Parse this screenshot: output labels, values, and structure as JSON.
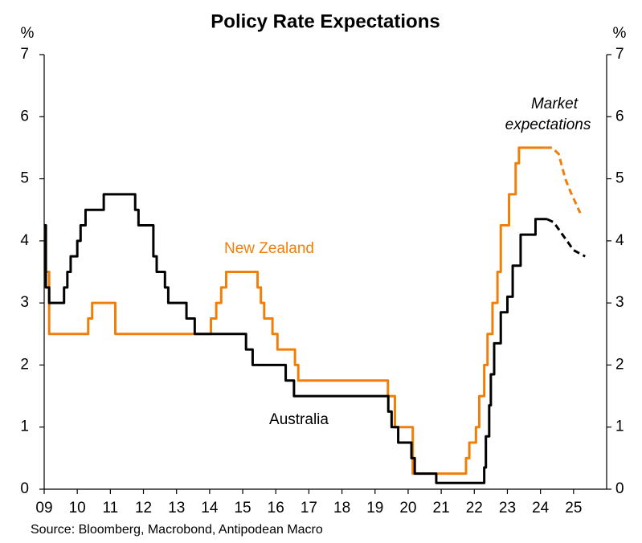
{
  "chart_data": {
    "type": "line",
    "title": "Policy Rate Expectations",
    "y_label": "%",
    "y2_label": "%",
    "source": "Source: Bloomberg, Macrobond, Antipodean Macro",
    "annotation": {
      "lines": [
        "Market",
        "expectations"
      ]
    },
    "drawstyle": "steps-post",
    "expectation_style": "dashed",
    "grid": false,
    "xlim": [
      2009,
      2026
    ],
    "xticks": [
      {
        "value": 2009,
        "label": "09"
      },
      {
        "value": 2010,
        "label": "10"
      },
      {
        "value": 2011,
        "label": "11"
      },
      {
        "value": 2012,
        "label": "12"
      },
      {
        "value": 2013,
        "label": "13"
      },
      {
        "value": 2014,
        "label": "14"
      },
      {
        "value": 2015,
        "label": "15"
      },
      {
        "value": 2016,
        "label": "16"
      },
      {
        "value": 2017,
        "label": "17"
      },
      {
        "value": 2018,
        "label": "18"
      },
      {
        "value": 2019,
        "label": "19"
      },
      {
        "value": 2020,
        "label": "20"
      },
      {
        "value": 2021,
        "label": "21"
      },
      {
        "value": 2022,
        "label": "22"
      },
      {
        "value": 2023,
        "label": "23"
      },
      {
        "value": 2024,
        "label": "24"
      },
      {
        "value": 2025,
        "label": "25"
      }
    ],
    "ylim": [
      0,
      7
    ],
    "yticks": [
      0,
      1,
      2,
      3,
      4,
      5,
      6,
      7
    ],
    "y2lim": [
      0,
      7
    ],
    "y2ticks": [
      0,
      1,
      2,
      3,
      4,
      5,
      6,
      7
    ],
    "series": [
      {
        "name": "New Zealand",
        "color": "#f07f09",
        "x": [
          2009.0,
          2009.05,
          2009.15,
          2010.33,
          2010.45,
          2011.15,
          2014.04,
          2014.2,
          2014.35,
          2014.5,
          2015.45,
          2015.55,
          2015.65,
          2015.9,
          2016.05,
          2016.58,
          2016.68,
          2019.39,
          2019.6,
          2020.14,
          2021.75,
          2021.85,
          2022.05,
          2022.15,
          2022.3,
          2022.4,
          2022.55,
          2022.7,
          2022.8,
          2023.05,
          2023.25,
          2023.35,
          2024.15,
          2024.35,
          2024.55,
          2024.75,
          2024.9,
          2025.2
        ],
        "values": [
          4.25,
          3.5,
          2.5,
          2.75,
          3.0,
          2.5,
          2.75,
          3.0,
          3.25,
          3.5,
          3.25,
          3.0,
          2.75,
          2.5,
          2.25,
          2.0,
          1.75,
          1.5,
          1.0,
          0.25,
          0.5,
          0.75,
          1.0,
          1.5,
          2.0,
          2.5,
          3.0,
          3.5,
          4.25,
          4.75,
          5.25,
          5.5,
          5.5,
          null,
          null,
          null,
          null,
          null
        ],
        "expectation_values": [
          null,
          null,
          null,
          null,
          null,
          null,
          null,
          null,
          null,
          null,
          null,
          null,
          null,
          null,
          null,
          null,
          null,
          null,
          null,
          null,
          null,
          null,
          null,
          null,
          null,
          null,
          null,
          null,
          null,
          null,
          null,
          null,
          5.5,
          5.5,
          5.4,
          5.0,
          4.8,
          4.45
        ]
      },
      {
        "name": "Australia",
        "color": "#000000",
        "x": [
          2009.0,
          2009.05,
          2009.15,
          2009.6,
          2009.7,
          2009.8,
          2010.0,
          2010.1,
          2010.25,
          2010.8,
          2011.75,
          2011.85,
          2012.3,
          2012.4,
          2012.65,
          2012.75,
          2013.3,
          2013.55,
          2015.1,
          2015.3,
          2016.3,
          2016.55,
          2019.4,
          2019.5,
          2019.7,
          2020.1,
          2020.2,
          2020.85,
          2022.3,
          2022.35,
          2022.45,
          2022.5,
          2022.6,
          2022.8,
          2023.0,
          2023.16,
          2023.4,
          2023.85,
          2024.2,
          2024.4,
          2024.6,
          2024.8,
          2025.0,
          2025.35
        ],
        "values": [
          4.25,
          3.25,
          3.0,
          3.25,
          3.5,
          3.75,
          4.0,
          4.25,
          4.5,
          4.75,
          4.5,
          4.25,
          3.75,
          3.5,
          3.25,
          3.0,
          2.75,
          2.5,
          2.25,
          2.0,
          1.75,
          1.5,
          1.25,
          1.0,
          0.75,
          0.5,
          0.25,
          0.1,
          0.35,
          0.85,
          1.35,
          1.85,
          2.35,
          2.85,
          3.1,
          3.6,
          4.1,
          4.35,
          4.35,
          null,
          null,
          null,
          null,
          null
        ],
        "expectation_values": [
          null,
          null,
          null,
          null,
          null,
          null,
          null,
          null,
          null,
          null,
          null,
          null,
          null,
          null,
          null,
          null,
          null,
          null,
          null,
          null,
          null,
          null,
          null,
          null,
          null,
          null,
          null,
          null,
          null,
          null,
          null,
          null,
          null,
          null,
          null,
          null,
          null,
          null,
          4.35,
          4.3,
          4.15,
          4.0,
          3.85,
          3.75
        ]
      }
    ]
  }
}
